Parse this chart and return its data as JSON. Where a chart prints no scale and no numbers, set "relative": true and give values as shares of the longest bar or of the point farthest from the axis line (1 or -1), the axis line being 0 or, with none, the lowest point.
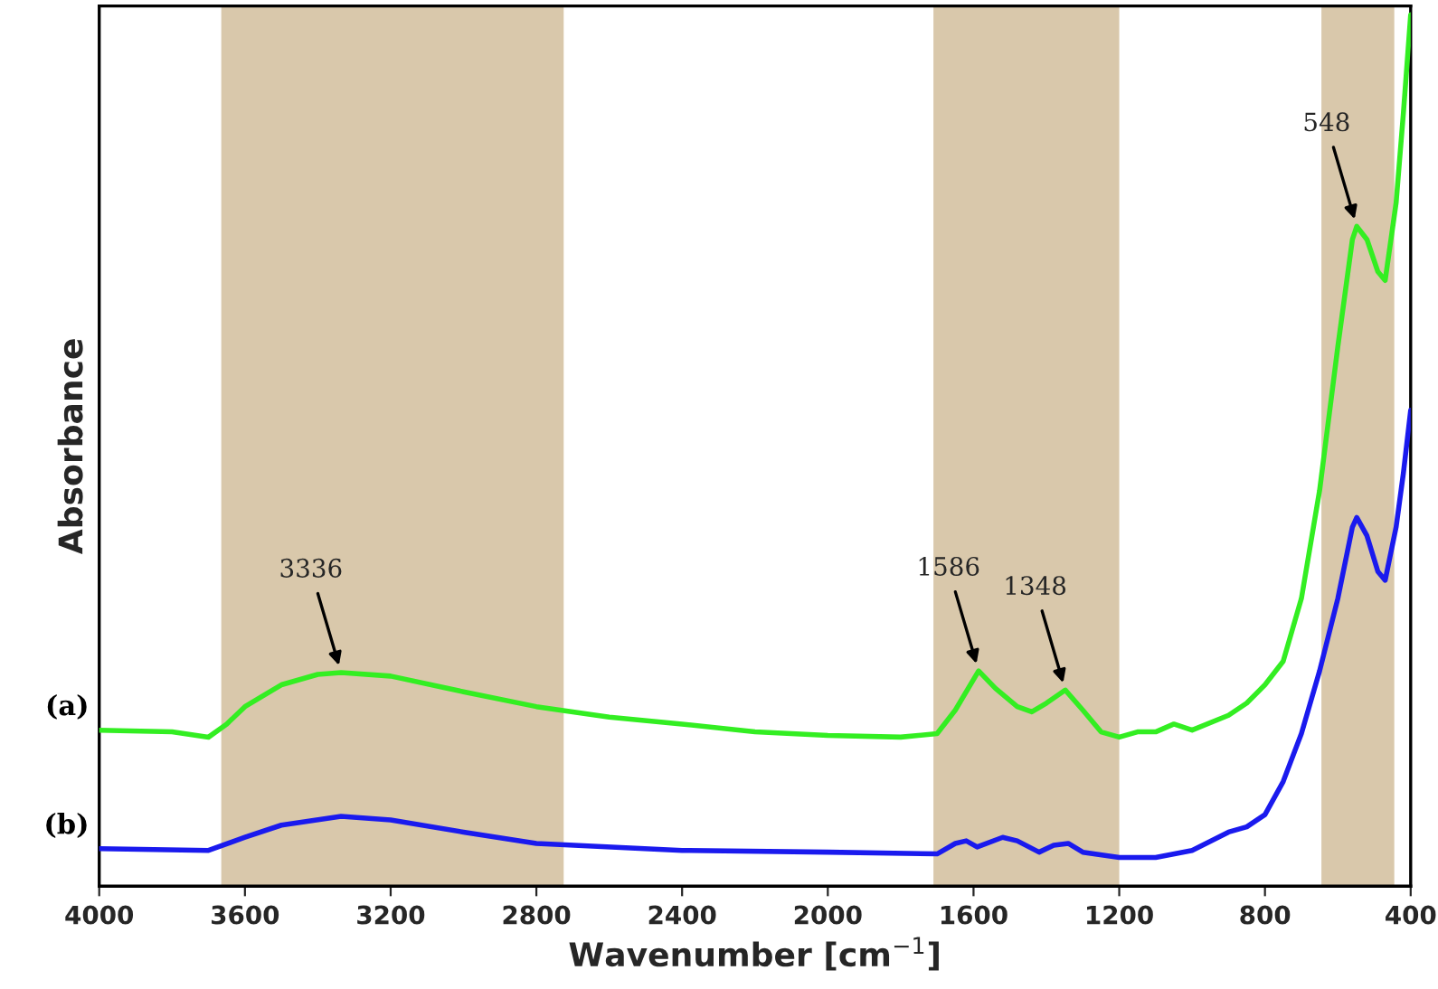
{
  "chart_data": {
    "type": "line",
    "relative": true,
    "xlabel": "Wavenumber [cm$^{−1}$]",
    "ylabel": "Absorbance",
    "xlim": [
      4000,
      400
    ],
    "xticks": [
      4000,
      3600,
      3200,
      2800,
      2400,
      2000,
      1600,
      1200,
      800,
      400
    ],
    "grid": false,
    "legend": false,
    "marker": "none",
    "line_style": "solid",
    "series": [
      {
        "name": "(a)",
        "color": "#33ee22",
        "x": [
          4000,
          3800,
          3700,
          3650,
          3600,
          3500,
          3400,
          3336,
          3200,
          3000,
          2800,
          2600,
          2400,
          2200,
          2000,
          1800,
          1700,
          1650,
          1586,
          1540,
          1480,
          1440,
          1400,
          1348,
          1300,
          1250,
          1200,
          1150,
          1100,
          1050,
          1000,
          900,
          850,
          800,
          750,
          700,
          650,
          600,
          560,
          548,
          520,
          490,
          470,
          440,
          420,
          400
        ],
        "values": [
          0.179,
          0.177,
          0.171,
          0.186,
          0.206,
          0.231,
          0.243,
          0.245,
          0.241,
          0.223,
          0.206,
          0.194,
          0.186,
          0.177,
          0.173,
          0.171,
          0.175,
          0.202,
          0.247,
          0.227,
          0.206,
          0.2,
          0.21,
          0.225,
          0.202,
          0.177,
          0.171,
          0.177,
          0.177,
          0.186,
          0.179,
          0.196,
          0.21,
          0.231,
          0.258,
          0.33,
          0.454,
          0.619,
          0.742,
          0.757,
          0.742,
          0.705,
          0.695,
          0.784,
          0.887,
          1.0
        ]
      },
      {
        "name": "(b)",
        "color": "#1a1aee",
        "x": [
          4000,
          3700,
          3600,
          3500,
          3336,
          3200,
          3000,
          2800,
          2400,
          2000,
          1700,
          1650,
          1620,
          1590,
          1520,
          1480,
          1420,
          1380,
          1340,
          1300,
          1200,
          1100,
          1000,
          900,
          850,
          800,
          750,
          700,
          650,
          600,
          560,
          548,
          520,
          490,
          470,
          440,
          420,
          400
        ],
        "values": [
          0.043,
          0.041,
          0.056,
          0.07,
          0.08,
          0.076,
          0.062,
          0.049,
          0.041,
          0.039,
          0.037,
          0.049,
          0.052,
          0.045,
          0.056,
          0.052,
          0.039,
          0.047,
          0.049,
          0.039,
          0.033,
          0.033,
          0.041,
          0.062,
          0.068,
          0.082,
          0.12,
          0.175,
          0.247,
          0.33,
          0.412,
          0.423,
          0.402,
          0.361,
          0.351,
          0.412,
          0.474,
          0.546
        ]
      }
    ],
    "bands": [
      {
        "axis": "x",
        "from": 3665,
        "to": 2725,
        "color": "#d9c8ab"
      },
      {
        "axis": "x",
        "from": 1710,
        "to": 1200,
        "color": "#d9c8ab"
      },
      {
        "axis": "x",
        "from": 645,
        "to": 445,
        "color": "#d9c8ab"
      }
    ],
    "annotations": [
      {
        "text": "3336",
        "x": 3336,
        "y": 0.245
      },
      {
        "text": "1586",
        "x": 1586,
        "y": 0.247
      },
      {
        "text": "1348",
        "x": 1348,
        "y": 0.225
      },
      {
        "text": "548",
        "x": 548,
        "y": 0.757
      }
    ]
  }
}
